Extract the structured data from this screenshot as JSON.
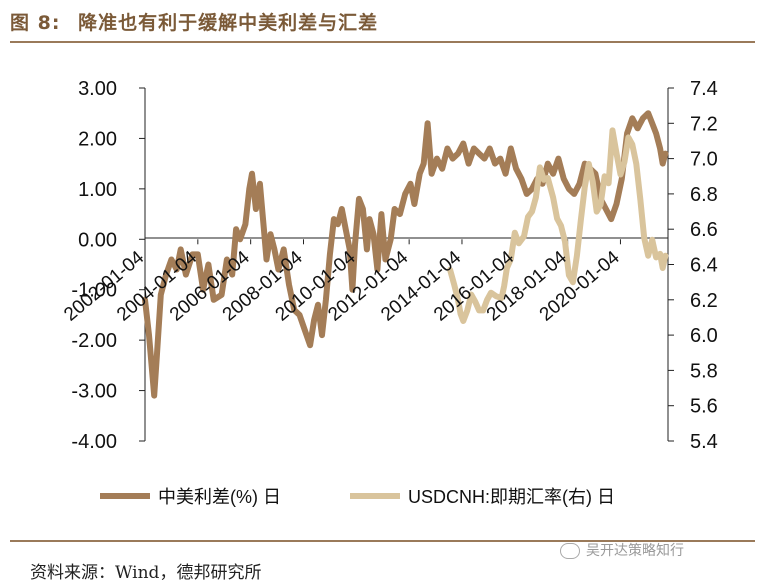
{
  "header": {
    "figure_number": "图 8:",
    "title": "降准也有利于缓解中美利差与汇差"
  },
  "footer": {
    "source": "资料来源：Wind，德邦研究所",
    "watermark": "吴开达策略知行"
  },
  "chart_data": {
    "type": "line",
    "title": "降准也有利于缓解中美利差与汇差",
    "left_axis": {
      "ylim": [
        -4.0,
        3.0
      ],
      "ticks": [
        "3.00",
        "2.00",
        "1.00",
        "0.00",
        "-1.00",
        "-2.00",
        "-3.00",
        "-4.00"
      ]
    },
    "right_axis": {
      "ylim": [
        5.4,
        7.4
      ],
      "ticks": [
        "7.4",
        "7.2",
        "7.0",
        "6.8",
        "6.6",
        "6.4",
        "6.2",
        "6.0",
        "5.8",
        "5.6",
        "5.4"
      ]
    },
    "x_tick_labels": [
      "2002-01-04",
      "2004-01-04",
      "2006-01-04",
      "2008-01-04",
      "2010-01-04",
      "2012-01-04",
      "2014-01-04",
      "2016-01-04",
      "2018-01-04",
      "2020-01-04"
    ],
    "x_tick_years": [
      2002,
      2004,
      2006,
      2008,
      2010,
      2012,
      2014,
      2016,
      2018,
      2020
    ],
    "xlim": [
      2002.0,
      2021.8
    ],
    "legend_position": "bottom",
    "series": [
      {
        "name": "中美利差(%) 日",
        "axis": "left",
        "color": "#a47d57",
        "points": [
          [
            2002.0,
            -1.2
          ],
          [
            2002.15,
            -1.9
          ],
          [
            2002.3,
            -2.8
          ],
          [
            2002.35,
            -3.1
          ],
          [
            2002.45,
            -2.3
          ],
          [
            2002.6,
            -1.1
          ],
          [
            2002.8,
            -0.7
          ],
          [
            2003.0,
            -0.4
          ],
          [
            2003.2,
            -0.6
          ],
          [
            2003.35,
            -0.2
          ],
          [
            2003.55,
            -0.7
          ],
          [
            2003.8,
            -0.3
          ],
          [
            2004.0,
            -0.3
          ],
          [
            2004.2,
            -1.0
          ],
          [
            2004.4,
            -0.5
          ],
          [
            2004.6,
            -1.2
          ],
          [
            2004.9,
            -1.1
          ],
          [
            2005.1,
            -0.4
          ],
          [
            2005.3,
            -0.7
          ],
          [
            2005.45,
            0.2
          ],
          [
            2005.6,
            0.0
          ],
          [
            2005.8,
            0.3
          ],
          [
            2005.95,
            1.0
          ],
          [
            2006.05,
            1.3
          ],
          [
            2006.2,
            0.6
          ],
          [
            2006.35,
            1.1
          ],
          [
            2006.5,
            0.2
          ],
          [
            2006.6,
            -0.4
          ],
          [
            2006.75,
            0.1
          ],
          [
            2006.9,
            -0.2
          ],
          [
            2007.05,
            -0.6
          ],
          [
            2007.25,
            -0.2
          ],
          [
            2007.45,
            -0.9
          ],
          [
            2007.65,
            -1.4
          ],
          [
            2007.85,
            -1.5
          ],
          [
            2008.05,
            -1.8
          ],
          [
            2008.25,
            -2.1
          ],
          [
            2008.4,
            -1.6
          ],
          [
            2008.55,
            -1.3
          ],
          [
            2008.7,
            -1.9
          ],
          [
            2008.85,
            -1.2
          ],
          [
            2009.0,
            -0.3
          ],
          [
            2009.15,
            0.4
          ],
          [
            2009.3,
            0.3
          ],
          [
            2009.45,
            0.6
          ],
          [
            2009.6,
            0.2
          ],
          [
            2009.75,
            -0.2
          ],
          [
            2009.85,
            -1.0
          ],
          [
            2009.95,
            -0.1
          ],
          [
            2010.1,
            0.8
          ],
          [
            2010.25,
            0.6
          ],
          [
            2010.4,
            -0.2
          ],
          [
            2010.5,
            0.4
          ],
          [
            2010.65,
            0.1
          ],
          [
            2010.8,
            -0.6
          ],
          [
            2010.95,
            0.5
          ],
          [
            2011.1,
            -0.4
          ],
          [
            2011.3,
            0.0
          ],
          [
            2011.45,
            0.6
          ],
          [
            2011.65,
            0.5
          ],
          [
            2011.85,
            0.9
          ],
          [
            2012.05,
            1.1
          ],
          [
            2012.2,
            0.7
          ],
          [
            2012.4,
            1.3
          ],
          [
            2012.55,
            1.5
          ],
          [
            2012.7,
            2.3
          ],
          [
            2012.85,
            1.3
          ],
          [
            2013.05,
            1.6
          ],
          [
            2013.25,
            1.4
          ],
          [
            2013.45,
            1.8
          ],
          [
            2013.65,
            1.6
          ],
          [
            2013.85,
            1.7
          ],
          [
            2014.05,
            1.9
          ],
          [
            2014.25,
            1.5
          ],
          [
            2014.45,
            1.8
          ],
          [
            2014.65,
            1.7
          ],
          [
            2014.85,
            1.6
          ],
          [
            2015.05,
            1.8
          ],
          [
            2015.25,
            1.5
          ],
          [
            2015.45,
            1.6
          ],
          [
            2015.65,
            1.3
          ],
          [
            2015.85,
            1.8
          ],
          [
            2016.05,
            1.4
          ],
          [
            2016.25,
            1.2
          ],
          [
            2016.45,
            0.9
          ],
          [
            2016.65,
            1.0
          ],
          [
            2016.85,
            1.2
          ],
          [
            2017.05,
            1.1
          ],
          [
            2017.25,
            1.5
          ],
          [
            2017.45,
            1.3
          ],
          [
            2017.65,
            1.6
          ],
          [
            2017.85,
            1.2
          ],
          [
            2018.05,
            1.0
          ],
          [
            2018.25,
            0.9
          ],
          [
            2018.45,
            1.1
          ],
          [
            2018.65,
            1.5
          ],
          [
            2018.85,
            1.4
          ],
          [
            2019.05,
            1.3
          ],
          [
            2019.25,
            0.8
          ],
          [
            2019.45,
            0.6
          ],
          [
            2019.65,
            0.4
          ],
          [
            2019.85,
            0.7
          ],
          [
            2020.05,
            1.2
          ],
          [
            2020.25,
            2.1
          ],
          [
            2020.45,
            2.4
          ],
          [
            2020.65,
            2.2
          ],
          [
            2020.85,
            2.4
          ],
          [
            2021.05,
            2.5
          ],
          [
            2021.2,
            2.3
          ],
          [
            2021.35,
            2.1
          ],
          [
            2021.5,
            1.8
          ],
          [
            2021.6,
            1.5
          ],
          [
            2021.7,
            1.7
          ]
        ]
      },
      {
        "name": "USDCNH:即期汇率(右) 日",
        "axis": "right",
        "color": "#d9c49c",
        "points": [
          [
            2013.55,
            6.37
          ],
          [
            2013.7,
            6.29
          ],
          [
            2013.85,
            6.2
          ],
          [
            2013.95,
            6.12
          ],
          [
            2014.05,
            6.08
          ],
          [
            2014.2,
            6.14
          ],
          [
            2014.35,
            6.23
          ],
          [
            2014.5,
            6.19
          ],
          [
            2014.65,
            6.14
          ],
          [
            2014.8,
            6.14
          ],
          [
            2014.95,
            6.2
          ],
          [
            2015.1,
            6.24
          ],
          [
            2015.3,
            6.22
          ],
          [
            2015.5,
            6.21
          ],
          [
            2015.6,
            6.28
          ],
          [
            2015.7,
            6.38
          ],
          [
            2015.85,
            6.43
          ],
          [
            2016.0,
            6.58
          ],
          [
            2016.15,
            6.52
          ],
          [
            2016.35,
            6.56
          ],
          [
            2016.5,
            6.67
          ],
          [
            2016.65,
            6.7
          ],
          [
            2016.8,
            6.78
          ],
          [
            2016.95,
            6.95
          ],
          [
            2017.1,
            6.88
          ],
          [
            2017.25,
            6.89
          ],
          [
            2017.45,
            6.78
          ],
          [
            2017.6,
            6.66
          ],
          [
            2017.75,
            6.62
          ],
          [
            2017.9,
            6.53
          ],
          [
            2018.05,
            6.34
          ],
          [
            2018.2,
            6.3
          ],
          [
            2018.35,
            6.45
          ],
          [
            2018.5,
            6.65
          ],
          [
            2018.65,
            6.84
          ],
          [
            2018.8,
            6.97
          ],
          [
            2018.95,
            6.87
          ],
          [
            2019.1,
            6.7
          ],
          [
            2019.25,
            6.74
          ],
          [
            2019.4,
            6.9
          ],
          [
            2019.55,
            6.86
          ],
          [
            2019.7,
            7.16
          ],
          [
            2019.85,
            7.03
          ],
          [
            2020.0,
            6.91
          ],
          [
            2020.15,
            6.98
          ],
          [
            2020.3,
            7.12
          ],
          [
            2020.45,
            7.08
          ],
          [
            2020.6,
            6.97
          ],
          [
            2020.75,
            6.77
          ],
          [
            2020.9,
            6.55
          ],
          [
            2021.05,
            6.45
          ],
          [
            2021.2,
            6.54
          ],
          [
            2021.35,
            6.44
          ],
          [
            2021.5,
            6.46
          ],
          [
            2021.6,
            6.38
          ],
          [
            2021.7,
            6.45
          ]
        ]
      }
    ]
  }
}
